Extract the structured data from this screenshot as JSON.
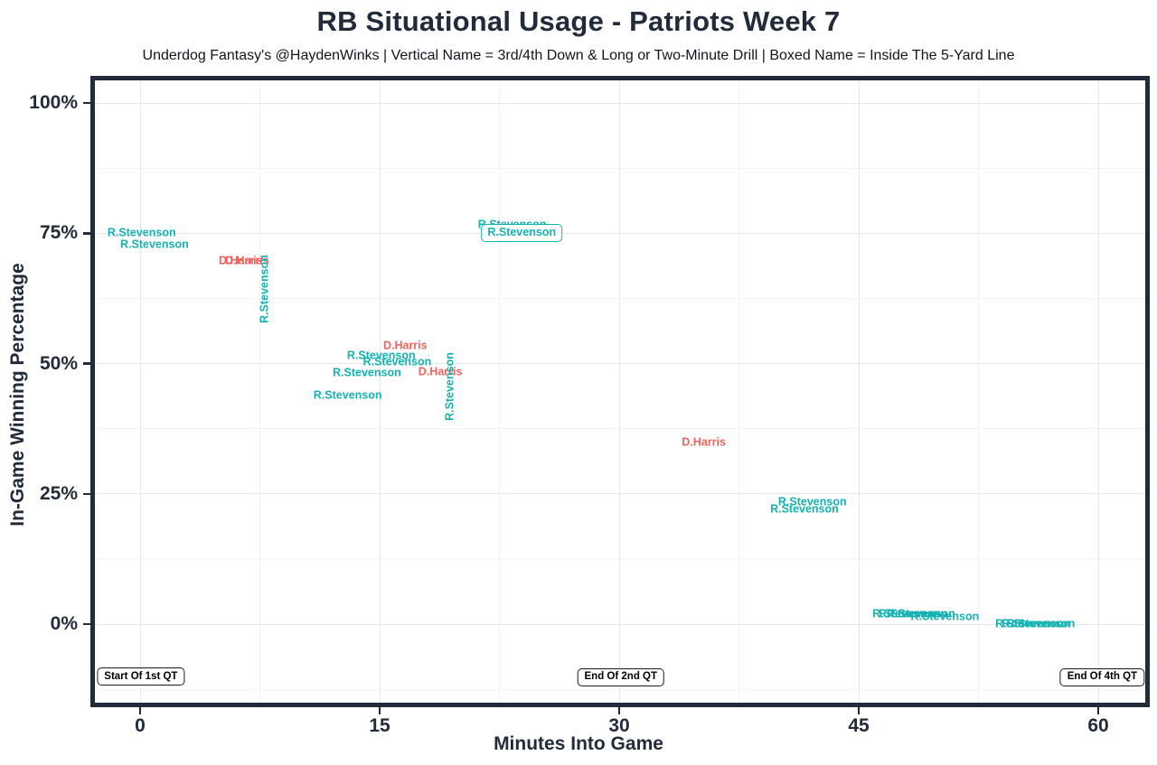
{
  "colors": {
    "text": "#212b3a",
    "panel_border": "#212b3a",
    "background": "#ffffff",
    "grid_major": "#e7e7e7",
    "grid_minor": "#f2f2f2",
    "teal": "#14b2b2",
    "red": "#f4625d",
    "annotation_border": "#1a1a1a"
  },
  "chart_data": {
    "type": "scatter",
    "title": "RB Situational Usage - Patriots Week 7",
    "subtitle": "Underdog Fantasy's @HaydenWinks | Vertical Name = 3rd/4th Down & Long or Two-Minute Drill | Boxed Name = Inside The 5-Yard Line",
    "xlabel": "Minutes Into Game",
    "ylabel": "In-Game Winning Percentage",
    "xlim": [
      -3,
      63
    ],
    "ylim": [
      -15,
      105
    ],
    "x_ticks": [
      0,
      15,
      30,
      45,
      60
    ],
    "x_tick_labels": [
      "0",
      "15",
      "30",
      "45",
      "60"
    ],
    "x_minor_ticks": [
      7.5,
      22.5,
      37.5,
      52.5
    ],
    "y_ticks": [
      0,
      25,
      50,
      75,
      100
    ],
    "y_tick_labels": [
      "0%",
      "25%",
      "50%",
      "75%",
      "100%"
    ],
    "y_minor_ticks": [
      -12.5,
      12.5,
      37.5,
      62.5,
      87.5
    ],
    "grid": "major+minor",
    "legend_position": "none",
    "style_meaning": {
      "vertical": "3rd/4th Down & Long or Two-Minute Drill",
      "boxed": "Inside The 5-Yard Line"
    },
    "series_colors": {
      "R.Stevenson": "#14b2b2",
      "D.Harris": "#f4625d"
    },
    "points": [
      {
        "player": "R.Stevenson",
        "x": 0.1,
        "y": 75.0,
        "style": "plain"
      },
      {
        "player": "R.Stevenson",
        "x": 0.9,
        "y": 72.8,
        "style": "plain"
      },
      {
        "player": "D.Harris",
        "x": 6.3,
        "y": 69.7,
        "style": "plain"
      },
      {
        "player": "D.Harris",
        "x": 6.7,
        "y": 69.7,
        "style": "plain"
      },
      {
        "player": "R.Stevenson",
        "x": 7.8,
        "y": 64.3,
        "style": "vertical"
      },
      {
        "player": "R.Stevenson",
        "x": 23.3,
        "y": 76.6,
        "style": "plain"
      },
      {
        "player": "R.Stevenson",
        "x": 23.9,
        "y": 75.0,
        "style": "boxed"
      },
      {
        "player": "D.Harris",
        "x": 16.6,
        "y": 53.4,
        "style": "plain"
      },
      {
        "player": "R.Stevenson",
        "x": 15.1,
        "y": 51.5,
        "style": "plain"
      },
      {
        "player": "R.Stevenson",
        "x": 16.1,
        "y": 50.3,
        "style": "plain"
      },
      {
        "player": "R.Stevenson",
        "x": 14.2,
        "y": 48.2,
        "style": "plain"
      },
      {
        "player": "D.Harris",
        "x": 18.8,
        "y": 48.4,
        "style": "plain"
      },
      {
        "player": "R.Stevenson",
        "x": 13.0,
        "y": 43.8,
        "style": "plain"
      },
      {
        "player": "R.Stevenson",
        "x": 19.4,
        "y": 45.6,
        "style": "vertical"
      },
      {
        "player": "D.Harris",
        "x": 35.3,
        "y": 34.8,
        "style": "plain"
      },
      {
        "player": "R.Stevenson",
        "x": 42.1,
        "y": 23.4,
        "style": "plain"
      },
      {
        "player": "R.Stevenson",
        "x": 41.6,
        "y": 22.0,
        "style": "plain"
      },
      {
        "player": "R.Stevenson",
        "x": 48.0,
        "y": 1.9,
        "style": "plain"
      },
      {
        "player": "R.Stevenson",
        "x": 48.4,
        "y": 1.9,
        "style": "plain"
      },
      {
        "player": "R.Stevenson",
        "x": 48.9,
        "y": 1.9,
        "style": "plain"
      },
      {
        "player": "R.Stevenson",
        "x": 50.4,
        "y": 1.4,
        "style": "plain"
      },
      {
        "player": "R.Stevenson",
        "x": 55.7,
        "y": 0.0,
        "style": "plain"
      },
      {
        "player": "R.Stevenson",
        "x": 56.1,
        "y": 0.0,
        "style": "plain"
      },
      {
        "player": "R.Stevenson",
        "x": 56.4,
        "y": 0.0,
        "style": "plain"
      }
    ],
    "annotations": [
      {
        "label": "Start Of 1st QT",
        "x": 0.05,
        "y": -10.1
      },
      {
        "label": "End Of 2nd QT",
        "x": 30.1,
        "y": -10.2
      },
      {
        "label": "End Of 4th QT",
        "x": 60.25,
        "y": -10.2
      }
    ]
  }
}
